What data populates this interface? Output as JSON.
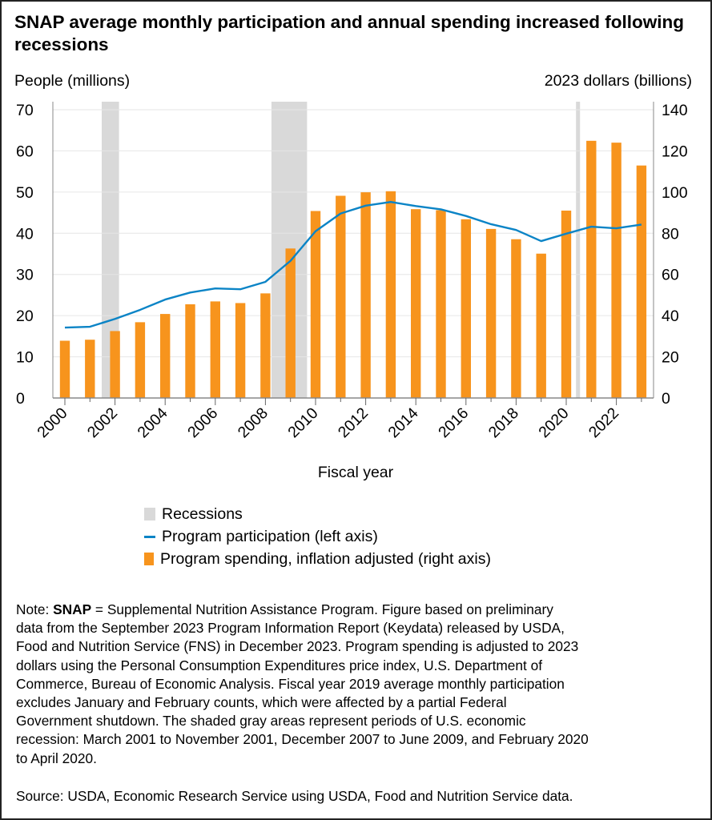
{
  "title": "SNAP average monthly participation and annual spending increased following recessions",
  "chart_data": {
    "type": "bar+line",
    "title": "SNAP average monthly participation and annual spending increased following recessions",
    "xlabel": "Fiscal year",
    "ylabel_left": "People (millions)",
    "ylabel_right": "2023 dollars (billions)",
    "ylim_left": [
      0,
      70
    ],
    "ylim_right": [
      0,
      140
    ],
    "yticks_left": [
      "0",
      "10",
      "20",
      "30",
      "40",
      "50",
      "60",
      "70"
    ],
    "yticks_right": [
      "0",
      "20",
      "40",
      "60",
      "80",
      "100",
      "120",
      "140"
    ],
    "xticks": [
      "2000",
      "2002",
      "2004",
      "2006",
      "2008",
      "2010",
      "2012",
      "2014",
      "2016",
      "2018",
      "2020",
      "2022"
    ],
    "grid": true,
    "legend_position": "bottom",
    "x": [
      2000,
      2001,
      2002,
      2003,
      2004,
      2005,
      2006,
      2007,
      2008,
      2009,
      2010,
      2011,
      2012,
      2013,
      2014,
      2015,
      2016,
      2017,
      2018,
      2019,
      2020,
      2021,
      2022,
      2023
    ],
    "series": [
      {
        "name": "Program participation (left axis)",
        "type": "line",
        "axis": "left",
        "color": "#0b84c6",
        "values": [
          17.1,
          17.3,
          19.2,
          21.4,
          23.9,
          25.6,
          26.6,
          26.4,
          28.2,
          33.3,
          40.5,
          44.8,
          46.7,
          47.6,
          46.6,
          45.8,
          44.2,
          42.2,
          40.8,
          38.1,
          39.9,
          41.6,
          41.2,
          42.1
        ]
      },
      {
        "name": "Program spending, inflation adjusted (right axis)",
        "type": "bar",
        "axis": "right",
        "color": "#f7941d",
        "values": [
          27.8,
          28.3,
          32.5,
          36.8,
          40.8,
          45.5,
          46.9,
          46.1,
          50.8,
          72.6,
          90.8,
          98.2,
          99.9,
          100.4,
          91.7,
          91.2,
          86.8,
          82.1,
          77.1,
          70.1,
          91.0,
          124.9,
          124.0,
          112.9
        ]
      }
    ],
    "recessions": {
      "name": "Recessions",
      "color": "#d9d9d9",
      "periods": [
        [
          2001.47,
          2002.16
        ],
        [
          2008.24,
          2009.66
        ],
        [
          2020.39,
          2020.55
        ]
      ]
    }
  },
  "legend": {
    "recessions": "Recessions",
    "participation": "Program participation (left axis)",
    "spending": "Program spending, inflation adjusted (right axis)"
  },
  "note": {
    "prefix": "Note: ",
    "bold": "SNAP",
    "first_rest": " = Supplemental Nutrition Assistance Program. Figure based on preliminary",
    "lines": [
      "data from the September 2023 Program Information Report (Keydata) released by USDA,",
      "Food and Nutrition Service (FNS) in December 2023. Program spending is adjusted to 2023",
      "dollars using the Personal Consumption Expenditures price index, U.S. Department of",
      "Commerce, Bureau of Economic Analysis. Fiscal year 2019 average monthly participation",
      "excludes January and February counts, which were affected by a partial Federal",
      "Government shutdown. The shaded gray areas represent periods of U.S. economic",
      "recession: March 2001 to November 2001, December 2007 to June 2009, and February 2020",
      "to April 2020."
    ]
  },
  "source": "Source: USDA, Economic Research Service using USDA, Food and Nutrition Service data."
}
